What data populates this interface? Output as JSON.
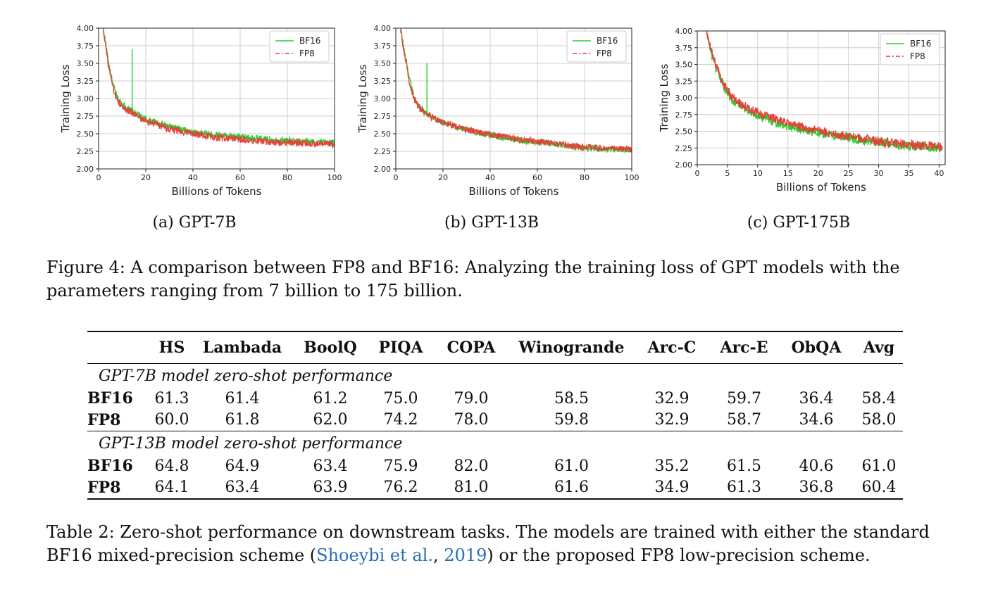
{
  "chart_data": [
    {
      "type": "line",
      "caption": "(a) GPT-7B",
      "xlabel": "Billions of Tokens",
      "ylabel": "Training Loss",
      "xlim": [
        0,
        100
      ],
      "ylim": [
        2.0,
        4.0
      ],
      "xticks": [
        "0",
        "20",
        "40",
        "60",
        "80",
        "100"
      ],
      "yticks": [
        "2.00",
        "2.25",
        "2.50",
        "2.75",
        "3.00",
        "3.25",
        "3.50",
        "3.75",
        "4.00"
      ],
      "grid": true,
      "legend": "top-right",
      "series": [
        {
          "name": "BF16",
          "color": "#2ecc2e",
          "x": [
            2,
            4,
            6,
            8,
            10,
            12,
            14,
            14.2,
            16,
            20,
            30,
            40,
            50,
            60,
            70,
            80,
            90,
            100
          ],
          "y": [
            4.0,
            3.55,
            3.2,
            3.0,
            2.92,
            2.86,
            2.82,
            3.7,
            2.78,
            2.7,
            2.6,
            2.52,
            2.48,
            2.45,
            2.42,
            2.4,
            2.38,
            2.37
          ]
        },
        {
          "name": "FP8",
          "color": "#e83a3a",
          "x": [
            2,
            4,
            6,
            8,
            10,
            12,
            14,
            16,
            20,
            30,
            40,
            50,
            60,
            70,
            80,
            90,
            100
          ],
          "y": [
            4.0,
            3.5,
            3.15,
            2.97,
            2.88,
            2.83,
            2.8,
            2.76,
            2.68,
            2.57,
            2.5,
            2.45,
            2.42,
            2.39,
            2.37,
            2.36,
            2.35
          ]
        }
      ]
    },
    {
      "type": "line",
      "caption": "(b) GPT-13B",
      "xlabel": "Billions of Tokens",
      "ylabel": "Training Loss",
      "xlim": [
        0,
        100
      ],
      "ylim": [
        2.0,
        4.0
      ],
      "xticks": [
        "0",
        "20",
        "40",
        "60",
        "80",
        "100"
      ],
      "yticks": [
        "2.00",
        "2.25",
        "2.50",
        "2.75",
        "3.00",
        "3.25",
        "3.50",
        "3.75",
        "4.00"
      ],
      "grid": true,
      "legend": "top-right",
      "series": [
        {
          "name": "BF16",
          "color": "#2ecc2e",
          "x": [
            2,
            4,
            6,
            8,
            10,
            12,
            13,
            13.2,
            15,
            20,
            30,
            40,
            50,
            60,
            70,
            80,
            90,
            100
          ],
          "y": [
            4.0,
            3.6,
            3.25,
            3.0,
            2.88,
            2.82,
            2.8,
            3.5,
            2.75,
            2.66,
            2.55,
            2.48,
            2.42,
            2.38,
            2.34,
            2.3,
            2.28,
            2.27
          ]
        },
        {
          "name": "FP8",
          "color": "#e83a3a",
          "x": [
            2,
            4,
            6,
            8,
            10,
            12,
            15,
            20,
            30,
            40,
            50,
            60,
            70,
            80,
            90,
            100
          ],
          "y": [
            4.0,
            3.55,
            3.2,
            2.97,
            2.86,
            2.8,
            2.74,
            2.66,
            2.56,
            2.49,
            2.43,
            2.39,
            2.35,
            2.31,
            2.29,
            2.28
          ]
        }
      ]
    },
    {
      "type": "line",
      "caption": "(c) GPT-175B",
      "xlabel": "Billions of Tokens",
      "ylabel": "Training Loss",
      "xlim": [
        0,
        41
      ],
      "ylim": [
        2.0,
        4.0
      ],
      "xticks": [
        "0",
        "5",
        "10",
        "15",
        "20",
        "25",
        "30",
        "35",
        "40"
      ],
      "yticks": [
        "2.00",
        "2.25",
        "2.50",
        "2.75",
        "3.00",
        "3.25",
        "3.50",
        "3.75",
        "4.00"
      ],
      "grid": true,
      "legend": "top-right",
      "series": [
        {
          "name": "BF16",
          "color": "#2ecc2e",
          "x": [
            1.5,
            2.5,
            3.5,
            4.5,
            5.5,
            7,
            9,
            11,
            13,
            15,
            18,
            21,
            25,
            30,
            35,
            40.5
          ],
          "y": [
            4.0,
            3.6,
            3.35,
            3.15,
            3.0,
            2.88,
            2.78,
            2.7,
            2.64,
            2.58,
            2.52,
            2.46,
            2.4,
            2.33,
            2.28,
            2.25
          ]
        },
        {
          "name": "FP8",
          "color": "#e83a3a",
          "x": [
            1.5,
            2.5,
            3.5,
            4.5,
            5.5,
            7,
            9,
            11,
            13,
            15,
            18,
            21,
            25,
            30,
            35,
            40.5
          ],
          "y": [
            4.0,
            3.65,
            3.4,
            3.2,
            3.05,
            2.92,
            2.82,
            2.74,
            2.68,
            2.62,
            2.55,
            2.49,
            2.42,
            2.35,
            2.3,
            2.27
          ]
        }
      ]
    }
  ],
  "figure_caption": "Figure 4: A comparison between FP8 and BF16: Analyzing the training loss of GPT models with the parameters ranging from 7 billion to 175 billion.",
  "table": {
    "columns": [
      "",
      "HS",
      "Lambada",
      "BoolQ",
      "PIQA",
      "COPA",
      "Winogrande",
      "Arc-C",
      "Arc-E",
      "ObQA",
      "Avg"
    ],
    "groups": [
      {
        "title": "GPT-7B model zero-shot performance",
        "rows": [
          {
            "label": "BF16",
            "values": [
              "61.3",
              "61.4",
              "61.2",
              "75.0",
              "79.0",
              "58.5",
              "32.9",
              "59.7",
              "36.4",
              "58.4"
            ]
          },
          {
            "label": "FP8",
            "values": [
              "60.0",
              "61.8",
              "62.0",
              "74.2",
              "78.0",
              "59.8",
              "32.9",
              "58.7",
              "34.6",
              "58.0"
            ]
          }
        ]
      },
      {
        "title": "GPT-13B model zero-shot performance",
        "rows": [
          {
            "label": "BF16",
            "values": [
              "64.8",
              "64.9",
              "63.4",
              "75.9",
              "82.0",
              "61.0",
              "35.2",
              "61.5",
              "40.6",
              "61.0"
            ]
          },
          {
            "label": "FP8",
            "values": [
              "64.1",
              "63.4",
              "63.9",
              "76.2",
              "81.0",
              "61.6",
              "34.9",
              "61.3",
              "36.8",
              "60.4"
            ]
          }
        ]
      }
    ]
  },
  "table_caption": {
    "before": "Table 2: Zero-shot performance on downstream tasks. The models are trained with either the standard BF16 mixed-precision scheme (",
    "cite_author": "Shoeybi et al.",
    "cite_sep": ", ",
    "cite_year": "2019",
    "after": ") or the proposed FP8 low-precision scheme."
  }
}
